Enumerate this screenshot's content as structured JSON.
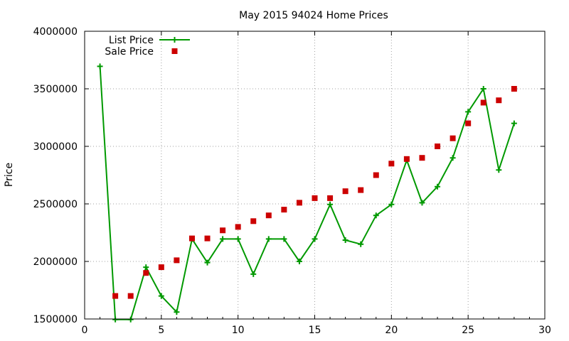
{
  "chart_data": {
    "type": "line",
    "title": "May 2015 94024 Home Prices",
    "xlabel": "",
    "ylabel": "Price",
    "xlim": [
      0,
      30
    ],
    "ylim": [
      1500000,
      4000000
    ],
    "xticks": [
      0,
      5,
      10,
      15,
      20,
      25,
      30
    ],
    "yticks": [
      1500000,
      2000000,
      2500000,
      3000000,
      3500000,
      4000000
    ],
    "grid": true,
    "legend_position": "top-left",
    "series": [
      {
        "name": "List Price",
        "style": "line-with-plus-markers",
        "color": "#009900",
        "x": [
          1,
          2,
          3,
          4,
          5,
          6,
          7,
          8,
          9,
          10,
          11,
          12,
          13,
          14,
          15,
          16,
          17,
          18,
          19,
          20,
          21,
          22,
          23,
          24,
          25,
          26,
          27,
          28
        ],
        "y": [
          3695000,
          1495000,
          1495000,
          1950000,
          1700000,
          1560000,
          2195000,
          1990000,
          2195000,
          2195000,
          1890000,
          2195000,
          2195000,
          2000000,
          2195000,
          2495000,
          2185000,
          2150000,
          2400000,
          2495000,
          2880000,
          2510000,
          2650000,
          2900000,
          3300000,
          3500000,
          2795000,
          3200000
        ]
      },
      {
        "name": "Sale Price",
        "style": "square-markers",
        "color": "#cc0000",
        "x": [
          2,
          3,
          4,
          5,
          6,
          7,
          8,
          9,
          10,
          11,
          12,
          13,
          14,
          15,
          16,
          17,
          18,
          19,
          20,
          21,
          22,
          23,
          24,
          25,
          26,
          27,
          28
        ],
        "y": [
          1700000,
          1700000,
          1900000,
          1950000,
          2010000,
          2200000,
          2200000,
          2270000,
          2300000,
          2350000,
          2400000,
          2450000,
          2510000,
          2550000,
          2550000,
          2610000,
          2620000,
          2750000,
          2850000,
          2890000,
          2900000,
          3000000,
          3070000,
          3200000,
          3380000,
          3400000,
          3500000
        ]
      }
    ]
  }
}
